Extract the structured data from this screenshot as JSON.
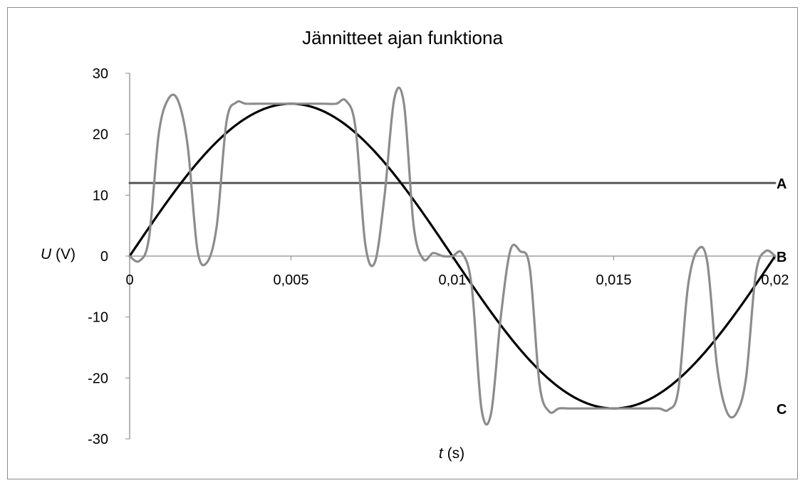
{
  "chart_data": {
    "type": "line",
    "title": "Jännitteet ajan funktiona",
    "xlabel": {
      "var": "t",
      "unit": " (s)"
    },
    "ylabel": {
      "var": "U",
      "unit": " (V)"
    },
    "xlim": [
      0,
      0.02
    ],
    "ylim": [
      -30,
      30
    ],
    "x_ticks": [
      "0",
      "0,005",
      "0,01",
      "0,015",
      "0,02"
    ],
    "y_ticks": [
      "30",
      "20",
      "10",
      "0",
      "-10",
      "-20",
      "-30"
    ],
    "grid": false,
    "series": [
      {
        "name": "A",
        "color": "#595959",
        "x": [
          0,
          0.02
        ],
        "y": [
          12,
          12
        ]
      },
      {
        "name": "B",
        "color": "#000000",
        "function": "25*sin(2*pi*50*t)",
        "x": [
          0,
          0.0025,
          0.005,
          0.0075,
          0.01,
          0.0125,
          0.015,
          0.0175,
          0.02
        ],
        "y": [
          0,
          17.7,
          25,
          17.7,
          0,
          -17.7,
          -25,
          -17.7,
          0
        ]
      },
      {
        "name": "C",
        "color": "#8c8c8c",
        "x": [
          0,
          0.0003,
          0.0006,
          0.0009,
          0.0012,
          0.0015,
          0.0018,
          0.0021,
          0.0024,
          0.0027,
          0.003,
          0.0033,
          0.0036,
          0.004,
          0.0045,
          0.005,
          0.0055,
          0.006,
          0.0064,
          0.0067,
          0.007,
          0.0073,
          0.0076,
          0.0079,
          0.0082,
          0.0085,
          0.0088,
          0.0091,
          0.0094,
          0.0097,
          0.01,
          0.0103,
          0.0106,
          0.0109,
          0.0112,
          0.0115,
          0.0118,
          0.0121,
          0.0124,
          0.0127,
          0.013,
          0.0133,
          0.0136,
          0.014,
          0.0145,
          0.015,
          0.0155,
          0.016,
          0.0164,
          0.0167,
          0.017,
          0.0173,
          0.0176,
          0.0179,
          0.0182,
          0.0185,
          0.0188,
          0.0191,
          0.0194,
          0.0197,
          0.02
        ],
        "y": [
          0,
          -0.8,
          3,
          20,
          25.8,
          25.5,
          18,
          1,
          -1,
          5,
          22,
          25.2,
          25,
          25,
          25,
          25,
          25,
          25,
          25,
          25.5,
          21,
          2,
          -1,
          10,
          25.8,
          25,
          5,
          -0.5,
          0.5,
          0,
          0,
          0.5,
          -5,
          -25,
          -25.8,
          -10,
          1,
          0.8,
          -2,
          -21,
          -25.5,
          -25,
          -25,
          -25,
          -25,
          -25,
          -25,
          -25,
          -25,
          -25.2,
          -22,
          -5,
          1,
          -1,
          -18,
          -25.5,
          -25.8,
          -20,
          -3,
          0.8,
          0
        ]
      }
    ]
  }
}
